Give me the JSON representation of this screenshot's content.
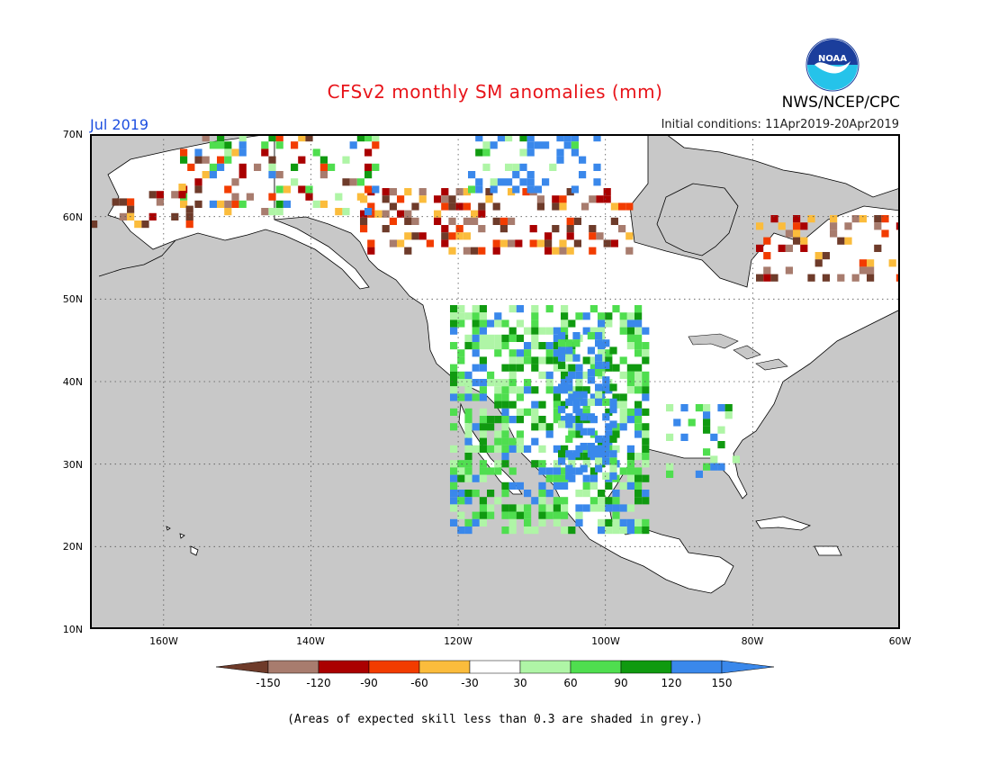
{
  "header": {
    "title": "CFSv2 monthly SM anomalies (mm)",
    "month": "Jul 2019",
    "initial_conditions": "Initial conditions: 11Apr2019-20Apr2019",
    "agency": "NWS/NCEP/CPC",
    "logo_text": "NOAA"
  },
  "map": {
    "region": "North America",
    "lon_range": [
      -170,
      -60
    ],
    "lat_range": [
      10,
      70
    ],
    "lat_labels": [
      "70N",
      "60N",
      "50N",
      "40N",
      "30N",
      "20N",
      "10N"
    ],
    "lon_labels": [
      "160W",
      "140W",
      "120W",
      "100W",
      "80W",
      "60W"
    ],
    "colors": {
      "ocean_low_skill": "#c8c8c8",
      "coast": "#000000",
      "grid": "#555555"
    }
  },
  "legend": {
    "labels": [
      "-150",
      "-120",
      "-90",
      "-60",
      "-30",
      "30",
      "60",
      "90",
      "120",
      "150"
    ],
    "colors": [
      "#6e3b2a",
      "#a87c6e",
      "#aa0000",
      "#f23c00",
      "#fbbc3c",
      "#ffffff",
      "#aff5a6",
      "#4fde4f",
      "#109a10",
      "#3a88eb",
      "#3a88eb"
    ]
  },
  "footer": {
    "note": "(Areas of expected skill less than 0.3 are shaded in grey.)"
  }
}
